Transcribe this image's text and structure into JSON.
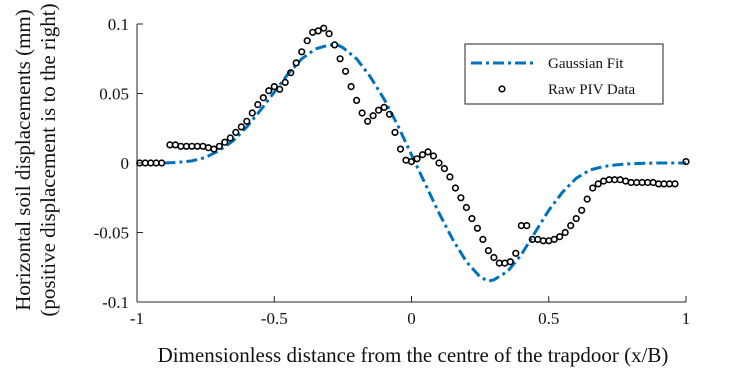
{
  "chart_data": {
    "type": "line",
    "xlabel": "Dimensionless distance from the centre of the trapdoor (x/B)",
    "ylabel_line1": "Horizontal soil displacements (mm)",
    "ylabel_line2": "(positive displacement is to the right)",
    "xlim": [
      -1,
      1
    ],
    "ylim": [
      -0.1,
      0.1
    ],
    "x_ticks": [
      -1,
      -0.5,
      0,
      0.5,
      1
    ],
    "x_tick_labels": [
      "-1",
      "-0.5",
      "0",
      "0.5",
      "1"
    ],
    "y_ticks": [
      -0.1,
      -0.05,
      0,
      0.05,
      0.1
    ],
    "y_tick_labels": [
      "-0.1",
      "-0.05",
      "0",
      "0.05",
      "0.1"
    ],
    "grid": false,
    "legend_position": "top-right",
    "series": [
      {
        "name": "Gaussian Fit",
        "style": "dash-dot line",
        "color": "#0072BD",
        "x": [
          -0.9,
          -0.85,
          -0.8,
          -0.75,
          -0.7,
          -0.65,
          -0.6,
          -0.55,
          -0.5,
          -0.45,
          -0.4,
          -0.35,
          -0.3,
          -0.27,
          -0.25,
          -0.2,
          -0.15,
          -0.1,
          -0.05,
          0,
          0.05,
          0.1,
          0.15,
          0.2,
          0.25,
          0.28,
          0.3,
          0.35,
          0.4,
          0.45,
          0.5,
          0.55,
          0.6,
          0.65,
          0.7,
          0.75,
          0.8,
          0.85,
          0.9,
          0.95,
          1.0
        ],
        "y": [
          0.0,
          0.0005,
          0.0015,
          0.004,
          0.009,
          0.016,
          0.026,
          0.038,
          0.051,
          0.064,
          0.075,
          0.082,
          0.085,
          0.085,
          0.083,
          0.075,
          0.062,
          0.046,
          0.027,
          0.006,
          -0.015,
          -0.036,
          -0.055,
          -0.071,
          -0.082,
          -0.085,
          -0.084,
          -0.078,
          -0.066,
          -0.05,
          -0.034,
          -0.021,
          -0.011,
          -0.005,
          -0.0025,
          -0.0012,
          -0.0005,
          -0.0002,
          0.0,
          0.0,
          0.0
        ]
      },
      {
        "name": "Raw PIV Data",
        "style": "open circle markers",
        "color": "#000000",
        "x": [
          -0.99,
          -0.97,
          -0.95,
          -0.93,
          -0.91,
          -0.88,
          -0.86,
          -0.84,
          -0.82,
          -0.8,
          -0.78,
          -0.76,
          -0.74,
          -0.72,
          -0.7,
          -0.68,
          -0.66,
          -0.64,
          -0.62,
          -0.6,
          -0.58,
          -0.56,
          -0.54,
          -0.52,
          -0.5,
          -0.48,
          -0.46,
          -0.44,
          -0.42,
          -0.4,
          -0.38,
          -0.36,
          -0.34,
          -0.32,
          -0.3,
          -0.28,
          -0.26,
          -0.24,
          -0.22,
          -0.2,
          -0.18,
          -0.16,
          -0.14,
          -0.12,
          -0.1,
          -0.08,
          -0.06,
          -0.04,
          -0.02,
          0.0,
          0.02,
          0.04,
          0.06,
          0.08,
          0.1,
          0.12,
          0.14,
          0.16,
          0.18,
          0.2,
          0.22,
          0.24,
          0.26,
          0.28,
          0.3,
          0.32,
          0.34,
          0.36,
          0.38,
          0.4,
          0.42,
          0.44,
          0.46,
          0.48,
          0.5,
          0.52,
          0.54,
          0.56,
          0.58,
          0.6,
          0.62,
          0.64,
          0.66,
          0.68,
          0.7,
          0.72,
          0.74,
          0.76,
          0.78,
          0.8,
          0.82,
          0.84,
          0.86,
          0.88,
          0.9,
          0.92,
          0.94,
          0.96,
          1.0
        ],
        "y": [
          0.0,
          0.0,
          0.0,
          0.0,
          0.0,
          0.013,
          0.013,
          0.012,
          0.012,
          0.012,
          0.012,
          0.012,
          0.011,
          0.01,
          0.012,
          0.015,
          0.018,
          0.022,
          0.026,
          0.03,
          0.036,
          0.042,
          0.047,
          0.052,
          0.055,
          0.053,
          0.058,
          0.065,
          0.072,
          0.08,
          0.088,
          0.094,
          0.095,
          0.097,
          0.093,
          0.085,
          0.075,
          0.066,
          0.055,
          0.045,
          0.036,
          0.03,
          0.034,
          0.038,
          0.04,
          0.035,
          0.022,
          0.01,
          0.002,
          0.001,
          0.003,
          0.006,
          0.008,
          0.005,
          0.0,
          -0.004,
          -0.01,
          -0.018,
          -0.025,
          -0.032,
          -0.04,
          -0.047,
          -0.055,
          -0.063,
          -0.068,
          -0.072,
          -0.072,
          -0.071,
          -0.065,
          -0.045,
          -0.045,
          -0.055,
          -0.055,
          -0.056,
          -0.056,
          -0.055,
          -0.053,
          -0.05,
          -0.045,
          -0.04,
          -0.034,
          -0.026,
          -0.018,
          -0.015,
          -0.013,
          -0.012,
          -0.012,
          -0.012,
          -0.013,
          -0.014,
          -0.014,
          -0.014,
          -0.014,
          -0.014,
          -0.015,
          -0.015,
          -0.015,
          -0.015,
          0.001
        ]
      }
    ]
  }
}
